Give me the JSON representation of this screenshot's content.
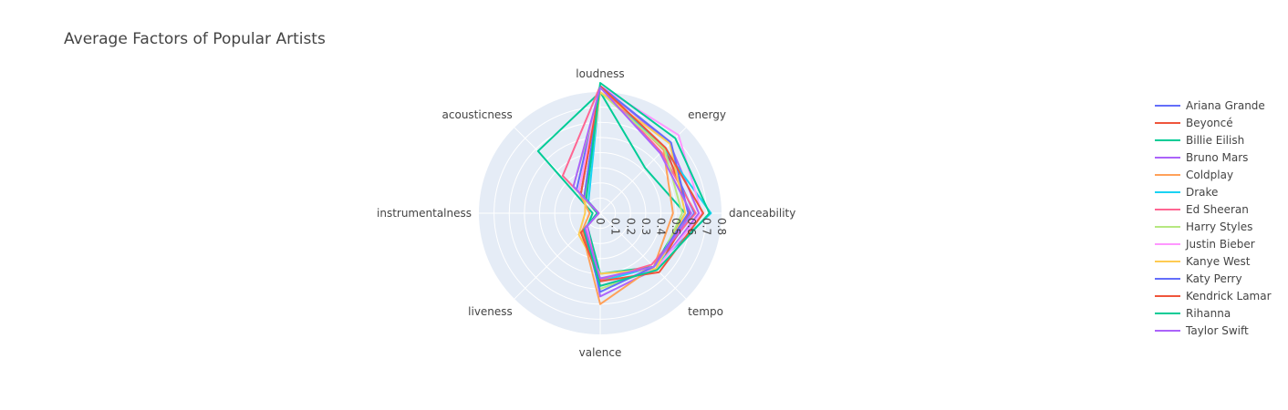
{
  "chart_data": {
    "type": "radar",
    "title": "Average Factors of Popular Artists",
    "axes": [
      "danceability",
      "energy",
      "loudness",
      "acousticness",
      "instrumentalness",
      "liveness",
      "valence",
      "tempo"
    ],
    "radial_range": [
      0,
      0.8
    ],
    "radial_ticks": [
      "0",
      "0.1",
      "0.2",
      "0.3",
      "0.4",
      "0.5",
      "0.6",
      "0.7",
      "0.8"
    ],
    "legend_position": "right",
    "grid": true,
    "background_color": "#e5ecf6",
    "series": [
      {
        "name": "Ariana Grande",
        "color": "#636efa",
        "values": [
          0.62,
          0.6,
          0.84,
          0.22,
          0.01,
          0.14,
          0.45,
          0.5
        ]
      },
      {
        "name": "Beyoncé",
        "color": "#ef553b",
        "values": [
          0.59,
          0.61,
          0.84,
          0.18,
          0.01,
          0.16,
          0.48,
          0.53
        ]
      },
      {
        "name": "Billie Eilish",
        "color": "#00cc96",
        "values": [
          0.56,
          0.42,
          0.8,
          0.58,
          0.05,
          0.12,
          0.4,
          0.5
        ]
      },
      {
        "name": "Bruno Mars",
        "color": "#ab63fa",
        "values": [
          0.65,
          0.65,
          0.84,
          0.18,
          0.01,
          0.12,
          0.55,
          0.52
        ]
      },
      {
        "name": "Coldplay",
        "color": "#ffa15a",
        "values": [
          0.48,
          0.59,
          0.83,
          0.2,
          0.07,
          0.17,
          0.6,
          0.5
        ]
      },
      {
        "name": "Drake",
        "color": "#19d3f3",
        "values": [
          0.73,
          0.6,
          0.84,
          0.11,
          0.01,
          0.14,
          0.45,
          0.5
        ]
      },
      {
        "name": "Ed Sheeran",
        "color": "#ff6692",
        "values": [
          0.63,
          0.57,
          0.84,
          0.35,
          0.01,
          0.13,
          0.44,
          0.48
        ]
      },
      {
        "name": "Harry Styles",
        "color": "#b6e880",
        "values": [
          0.54,
          0.6,
          0.8,
          0.25,
          0.02,
          0.14,
          0.5,
          0.52
        ]
      },
      {
        "name": "Justin Bieber",
        "color": "#ff97ff",
        "values": [
          0.67,
          0.73,
          0.84,
          0.2,
          0.01,
          0.13,
          0.48,
          0.52
        ]
      },
      {
        "name": "Kanye West",
        "color": "#fecb52",
        "values": [
          0.56,
          0.65,
          0.8,
          0.14,
          0.1,
          0.2,
          0.4,
          0.52
        ]
      },
      {
        "name": "Katy Perry",
        "color": "#636efa",
        "values": [
          0.58,
          0.66,
          0.84,
          0.15,
          0.01,
          0.15,
          0.52,
          0.5
        ]
      },
      {
        "name": "Kendrick Lamar",
        "color": "#ef553b",
        "values": [
          0.68,
          0.61,
          0.84,
          0.18,
          0.01,
          0.18,
          0.45,
          0.55
        ]
      },
      {
        "name": "Rihanna",
        "color": "#00cc96",
        "values": [
          0.72,
          0.7,
          0.86,
          0.13,
          0.02,
          0.15,
          0.48,
          0.53
        ]
      },
      {
        "name": "Taylor Swift",
        "color": "#ab63fa",
        "values": [
          0.6,
          0.56,
          0.83,
          0.25,
          0.01,
          0.14,
          0.43,
          0.5
        ]
      }
    ]
  }
}
